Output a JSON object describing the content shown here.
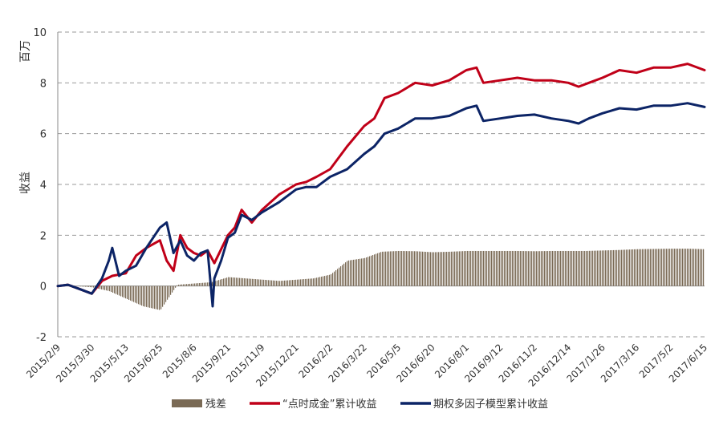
{
  "chart_data": {
    "type": "line",
    "ylabel": "百万 收益",
    "ylabel_unit": "百万",
    "ylabel_name": "收益",
    "ylim": [
      -2,
      10
    ],
    "yticks": [
      -2,
      0,
      2,
      4,
      6,
      8,
      10
    ],
    "grid": true,
    "legend_placement": "bottom",
    "x_tick_labels": [
      "2015/2/9",
      "2015/3/30",
      "2015/5/13",
      "2015/6/25",
      "2015/8/6",
      "2015/9/21",
      "2015/11/9",
      "2015/12/21",
      "2016/2/2",
      "2016/3/22",
      "2016/5/5",
      "2016/6/20",
      "2016/8/1",
      "2016/9/12",
      "2016/11/2",
      "2016/12/14",
      "2017/1/26",
      "2017/3/16",
      "2017/5/2",
      "2017/6/15"
    ],
    "colors": {
      "residual": "#7a6a55",
      "dianshi": "#c00018",
      "multifactor": "#0c2466",
      "grid": "#999999"
    },
    "series": [
      {
        "name": "残差",
        "kind": "bar",
        "color": "#7a6a55",
        "x": [
          0,
          0.5,
          1,
          1.5,
          2,
          2.5,
          3,
          3.5,
          4,
          4.5,
          5,
          5.5,
          6,
          6.5,
          7,
          7.5,
          8,
          8.5,
          9,
          9.5,
          10,
          10.5,
          11,
          11.5,
          12,
          12.5,
          13,
          13.5,
          14,
          14.5,
          15,
          15.5,
          16,
          16.5,
          17,
          17.5,
          18,
          18.5,
          19
        ],
        "values": [
          0,
          0,
          -0.05,
          -0.2,
          -0.5,
          -0.8,
          -0.95,
          0.05,
          0.1,
          0.15,
          0.35,
          0.3,
          0.25,
          0.2,
          0.25,
          0.3,
          0.45,
          1.0,
          1.1,
          1.35,
          1.38,
          1.37,
          1.33,
          1.35,
          1.38,
          1.38,
          1.38,
          1.38,
          1.37,
          1.38,
          1.38,
          1.38,
          1.4,
          1.42,
          1.45,
          1.46,
          1.47,
          1.47,
          1.45
        ]
      },
      {
        "name": "“点时成金”累计收益",
        "kind": "line",
        "color": "#c00018",
        "x": [
          0,
          0.3,
          0.6,
          1,
          1.3,
          1.6,
          2,
          2.3,
          2.6,
          3,
          3.2,
          3.4,
          3.6,
          3.8,
          4,
          4.2,
          4.4,
          4.6,
          5,
          5.2,
          5.4,
          5.7,
          6,
          6.5,
          7,
          7.3,
          7.6,
          8,
          8.5,
          9,
          9.3,
          9.6,
          10,
          10.5,
          11,
          11.5,
          12,
          12.3,
          12.5,
          13,
          13.5,
          14,
          14.5,
          15,
          15.3,
          15.6,
          16,
          16.5,
          17,
          17.5,
          18,
          18.5,
          19
        ],
        "values": [
          0,
          0.05,
          -0.1,
          -0.3,
          0.2,
          0.4,
          0.5,
          1.2,
          1.5,
          1.8,
          1.0,
          0.6,
          2.0,
          1.5,
          1.3,
          1.2,
          1.4,
          0.9,
          2.0,
          2.3,
          3.0,
          2.5,
          3.0,
          3.6,
          4.0,
          4.1,
          4.3,
          4.6,
          5.5,
          6.3,
          6.6,
          7.4,
          7.6,
          8.0,
          7.9,
          8.1,
          8.5,
          8.6,
          8.0,
          8.1,
          8.2,
          8.1,
          8.1,
          8.0,
          7.85,
          8.0,
          8.2,
          8.5,
          8.4,
          8.6,
          8.6,
          8.75,
          8.5
        ]
      },
      {
        "name": "期权多因子模型累计收益",
        "kind": "line",
        "color": "#0c2466",
        "x": [
          0,
          0.3,
          0.6,
          1,
          1.3,
          1.5,
          1.6,
          1.8,
          2,
          2.3,
          2.6,
          3,
          3.2,
          3.4,
          3.6,
          3.8,
          4,
          4.2,
          4.4,
          4.55,
          4.6,
          4.8,
          5,
          5.2,
          5.4,
          5.7,
          6,
          6.5,
          7,
          7.3,
          7.6,
          8,
          8.5,
          9,
          9.3,
          9.6,
          10,
          10.5,
          11,
          11.5,
          12,
          12.3,
          12.5,
          13,
          13.5,
          14,
          14.5,
          15,
          15.3,
          15.6,
          16,
          16.5,
          17,
          17.5,
          18,
          18.5,
          19
        ],
        "values": [
          0,
          0.05,
          -0.1,
          -0.3,
          0.3,
          1.0,
          1.5,
          0.4,
          0.6,
          0.8,
          1.5,
          2.3,
          2.5,
          1.3,
          1.8,
          1.2,
          1.0,
          1.3,
          1.4,
          -0.8,
          0.3,
          1.0,
          1.9,
          2.1,
          2.8,
          2.6,
          2.9,
          3.3,
          3.8,
          3.9,
          3.9,
          4.3,
          4.6,
          5.2,
          5.5,
          6.0,
          6.2,
          6.6,
          6.6,
          6.7,
          7.0,
          7.1,
          6.5,
          6.6,
          6.7,
          6.75,
          6.6,
          6.5,
          6.4,
          6.6,
          6.8,
          7.0,
          6.95,
          7.1,
          7.1,
          7.2,
          7.05
        ]
      }
    ]
  },
  "legend": {
    "residual": "残差",
    "dianshi": "“点时成金”累计收益",
    "multifactor": "期权多因子模型累计收益"
  }
}
